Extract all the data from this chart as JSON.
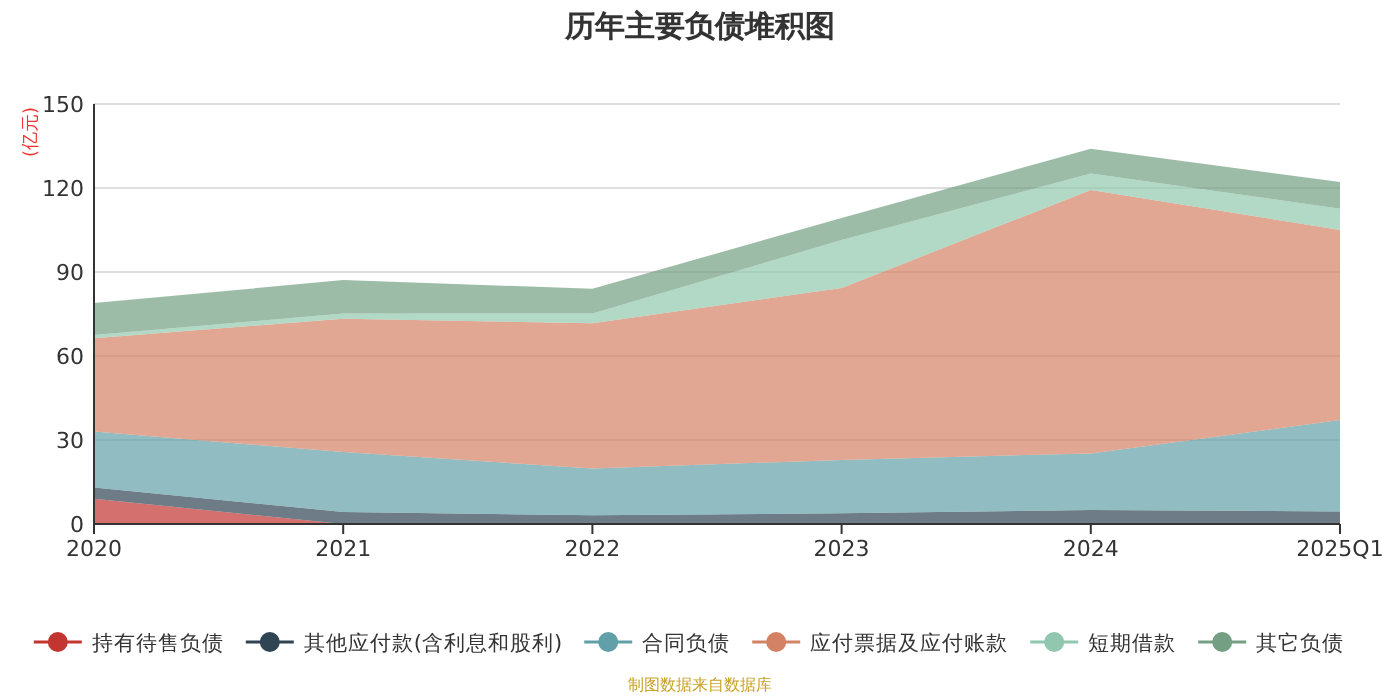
{
  "chart_data": {
    "type": "area",
    "title": "历年主要负债堆积图",
    "ylabel": "(亿元)",
    "stacked": true,
    "categories": [
      "2020",
      "2021",
      "2022",
      "2023",
      "2024",
      "2025Q1"
    ],
    "series": [
      {
        "name": "持有待售负债",
        "color": "#c23531",
        "values": [
          9,
          0,
          0,
          0,
          0,
          0
        ]
      },
      {
        "name": "其他应付款(含利息和股利)",
        "color": "#2f4554",
        "values": [
          4,
          4.3,
          3.1,
          3.8,
          5,
          4.5
        ]
      },
      {
        "name": "合同负债",
        "color": "#61a0a8",
        "values": [
          20,
          21.4,
          16.7,
          19.1,
          20.2,
          32.6
        ]
      },
      {
        "name": "应付票据及应付账款",
        "color": "#d48265",
        "values": [
          33.3,
          47.6,
          51.9,
          61.4,
          94.1,
          67.9
        ]
      },
      {
        "name": "短期借款",
        "color": "#91c7ae",
        "values": [
          1.2,
          1.9,
          3.5,
          17.1,
          5.9,
          7.6
        ]
      },
      {
        "name": "其它负债",
        "color": "#749f83",
        "values": [
          11.4,
          11.9,
          8.8,
          7.9,
          8.8,
          9.5
        ]
      }
    ],
    "ylim": [
      0,
      150
    ],
    "yticks": [
      0,
      30,
      60,
      90,
      120,
      150
    ],
    "grid": "y",
    "legend": "bottom",
    "annotations": [
      "制图数据来自数据库"
    ]
  }
}
